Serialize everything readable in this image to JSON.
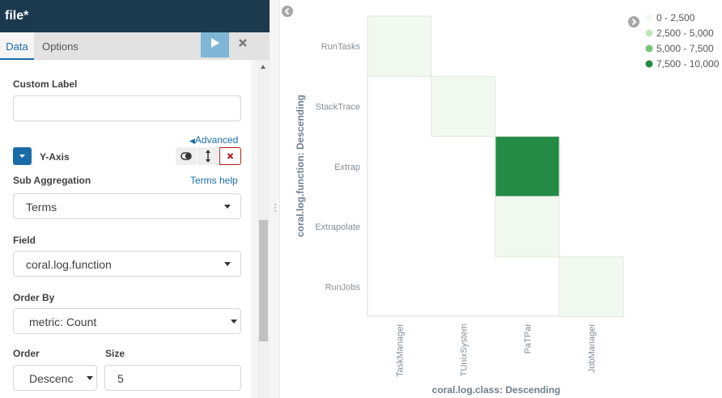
{
  "window": {
    "title": "file*"
  },
  "tabs": [
    {
      "label": "Data"
    },
    {
      "label": "Options"
    }
  ],
  "toolbar": {
    "run_icon": "play-icon",
    "close_icon": "close-icon"
  },
  "form": {
    "custom_label": {
      "label": "Custom Label",
      "value": ""
    },
    "advanced_link": "Advanced",
    "y_axis": {
      "label": "Y-Axis"
    },
    "sub_aggregation": {
      "label": "Sub Aggregation",
      "help": "Terms help",
      "value": "Terms"
    },
    "field": {
      "label": "Field",
      "value": "coral.log.function"
    },
    "order_by": {
      "label": "Order By",
      "value": "metric: Count"
    },
    "order": {
      "label": "Order",
      "value": "Descenc"
    },
    "size": {
      "label": "Size",
      "value": "5"
    }
  },
  "colors": {
    "header_bg": "#1c3a4e",
    "accent": "#1a6ca8",
    "run_button": "#7fb5d5",
    "remove_red": "#b31e1e"
  },
  "chart_data": {
    "type": "heatmap",
    "xlabel": "coral.log.class: Descending",
    "ylabel": "coral.log.function: Descending",
    "x_categories": [
      "TaskManager",
      "TUnixSystem",
      "PaTPar",
      "JobManager"
    ],
    "y_categories": [
      "RunTasks",
      "StackTrace",
      "Extrap",
      "Extrapolate",
      "RunJobs"
    ],
    "cells": [
      {
        "x": "TaskManager",
        "y": "RunTasks",
        "value": 1000
      },
      {
        "x": "TUnixSystem",
        "y": "StackTrace",
        "value": 1000
      },
      {
        "x": "PaTPar",
        "y": "Extrap",
        "value": 9000
      },
      {
        "x": "PaTPar",
        "y": "Extrapolate",
        "value": 1000
      },
      {
        "x": "JobManager",
        "y": "RunJobs",
        "value": 1000
      }
    ],
    "legend": {
      "position": "top-right",
      "items": [
        {
          "label": "0 - 2,500",
          "color": "#f2f9ef"
        },
        {
          "label": "2,500 - 5,000",
          "color": "#c2e6bb"
        },
        {
          "label": "5,000 - 7,500",
          "color": "#74c476"
        },
        {
          "label": "7,500 - 10,000",
          "color": "#238b45"
        }
      ]
    }
  }
}
